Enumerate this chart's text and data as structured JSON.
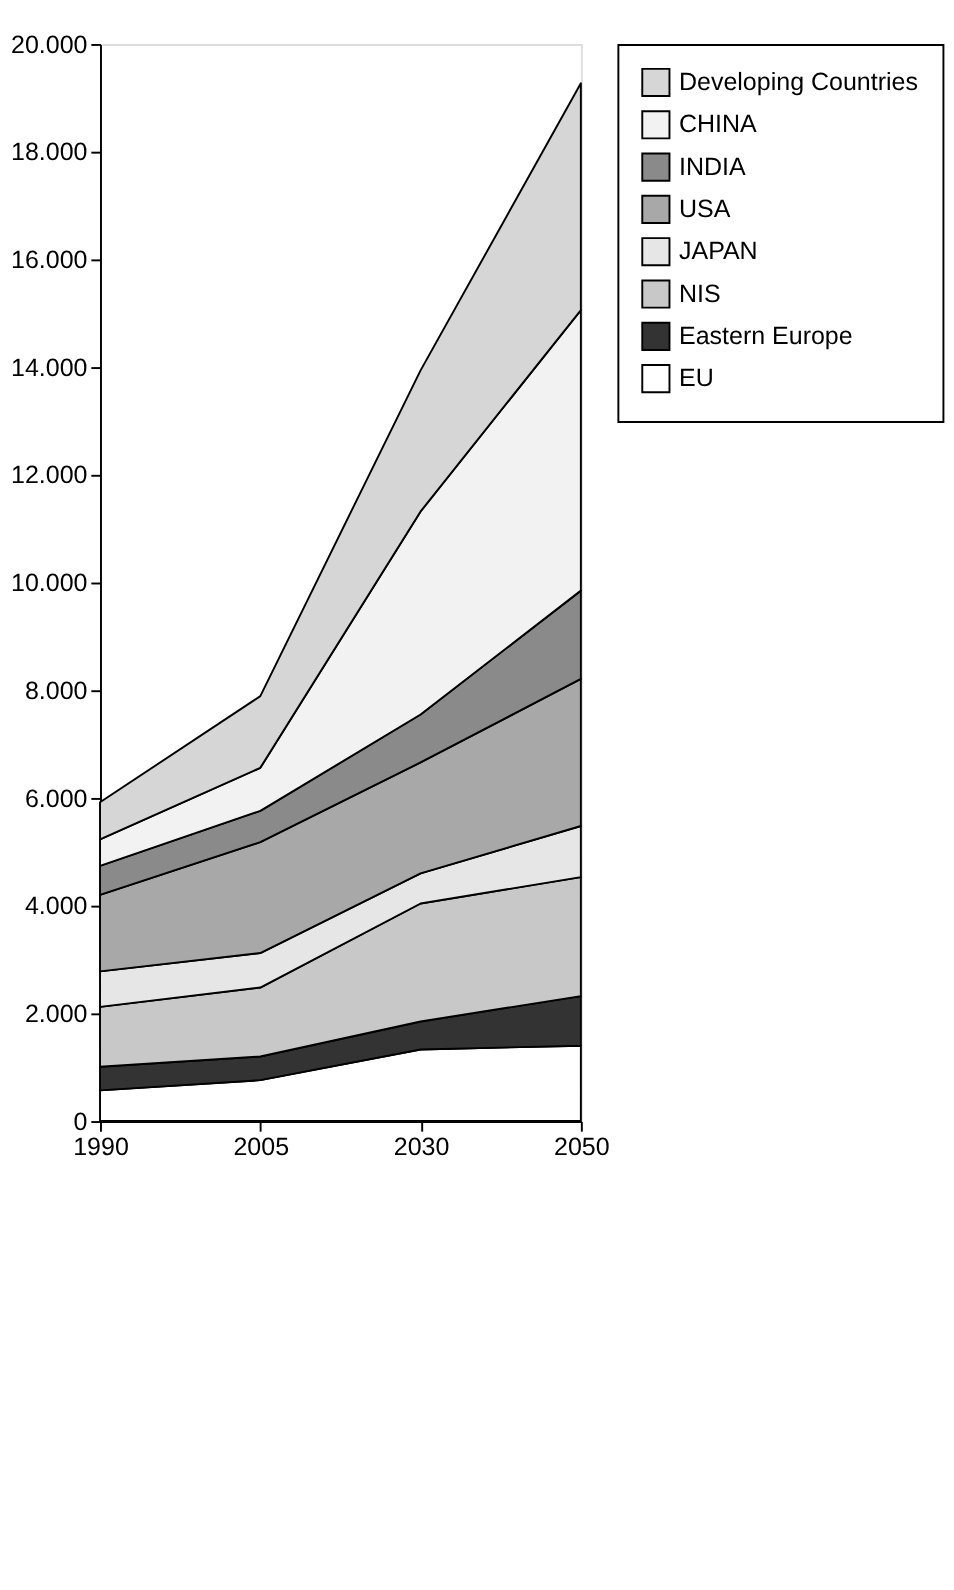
{
  "chart_data": {
    "type": "area",
    "stacked": true,
    "categories": [
      "1990",
      "2005",
      "2030",
      "2050"
    ],
    "ylim": [
      0,
      20000
    ],
    "yticks": [
      0,
      {
        "value": 2000,
        "label": "2.000"
      },
      {
        "value": 4000,
        "label": "4.000"
      },
      {
        "value": 6000,
        "label": "6.000"
      },
      {
        "value": 8000,
        "label": "8.000"
      },
      {
        "value": 10000,
        "label": "10.000"
      },
      {
        "value": 12000,
        "label": "12.000"
      },
      {
        "value": 14000,
        "label": "14.000"
      },
      {
        "value": 16000,
        "label": "16.000"
      },
      {
        "value": 18000,
        "label": "18.000"
      },
      {
        "value": 20000,
        "label": "20.000"
      }
    ],
    "grid": false,
    "legend": "right",
    "series": [
      {
        "name": "EU",
        "color": "#ffffff",
        "values": [
          570,
          760,
          1330,
          1400
        ]
      },
      {
        "name": "Eastern Europe",
        "color": "#333333",
        "values": [
          440,
          440,
          520,
          920
        ]
      },
      {
        "name": "NIS",
        "color": "#c8c8c8",
        "values": [
          1110,
          1280,
          2190,
          2210
        ]
      },
      {
        "name": "JAPAN",
        "color": "#e6e6e6",
        "values": [
          660,
          640,
          560,
          950
        ]
      },
      {
        "name": "USA",
        "color": "#a8a8a8",
        "values": [
          1420,
          2060,
          2060,
          2730
        ]
      },
      {
        "name": "INDIA",
        "color": "#8a8a8a",
        "values": [
          540,
          580,
          890,
          1640
        ]
      },
      {
        "name": "CHINA",
        "color": "#f2f2f2",
        "values": [
          490,
          800,
          3770,
          5210
        ]
      },
      {
        "name": "Developing Countries",
        "color": "#d6d6d6",
        "values": [
          690,
          1330,
          2620,
          4210
        ]
      }
    ]
  }
}
